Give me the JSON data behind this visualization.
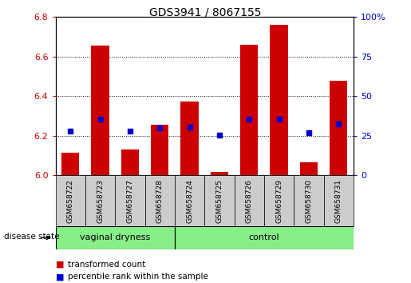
{
  "title": "GDS3941 / 8067155",
  "samples": [
    "GSM658722",
    "GSM658723",
    "GSM658727",
    "GSM658728",
    "GSM658724",
    "GSM658725",
    "GSM658726",
    "GSM658729",
    "GSM658730",
    "GSM658731"
  ],
  "red_values": [
    6.115,
    6.655,
    6.13,
    6.255,
    6.375,
    6.02,
    6.66,
    6.76,
    6.065,
    6.48
  ],
  "blue_values": [
    6.225,
    6.285,
    6.225,
    6.24,
    6.245,
    6.205,
    6.285,
    6.285,
    6.215,
    6.26
  ],
  "ylim_left": [
    6.0,
    6.8
  ],
  "ylim_right": [
    0,
    100
  ],
  "right_ticks": [
    0,
    25,
    50,
    75,
    100
  ],
  "right_tick_labels": [
    "0",
    "25",
    "50",
    "75",
    "100%"
  ],
  "left_ticks": [
    6.0,
    6.2,
    6.4,
    6.6,
    6.8
  ],
  "bar_color": "#cc0000",
  "dot_color": "#0000cc",
  "vag_count": 4,
  "ctrl_count": 6,
  "group_vaginal_label": "vaginal dryness",
  "group_control_label": "control",
  "disease_state_label": "disease state",
  "legend_red_label": "transformed count",
  "legend_blue_label": "percentile rank within the sample",
  "base_value": 6.0,
  "bar_width": 0.6,
  "group_bg_color": "#88ee88",
  "cell_bg_color": "#cccccc",
  "xlabel_color_left": "#cc0000",
  "xlabel_color_right": "#0000cc"
}
